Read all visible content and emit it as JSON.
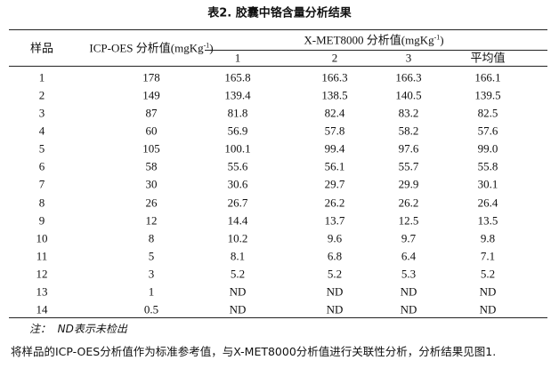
{
  "title": "表2. 胶囊中铬含量分析结果",
  "table": {
    "header": {
      "sample": "样品",
      "icp": {
        "text": "ICP-OES 分析值(mgKg",
        "sup": "-1",
        "close": ")"
      },
      "xmet": {
        "text": "X-MET8000 分析值(mgKg",
        "sup": "-1",
        "close": ")"
      },
      "sub": [
        "1",
        "2",
        "3",
        "平均值"
      ]
    },
    "rows": [
      [
        "1",
        "178",
        "165.8",
        "166.3",
        "166.3",
        "166.1"
      ],
      [
        "2",
        "149",
        "139.4",
        "138.5",
        "140.5",
        "139.5"
      ],
      [
        "3",
        "87",
        "81.8",
        "82.4",
        "83.2",
        "82.5"
      ],
      [
        "4",
        "60",
        "56.9",
        "57.8",
        "58.2",
        "57.6"
      ],
      [
        "5",
        "105",
        "100.1",
        "99.4",
        "97.6",
        "99.0"
      ],
      [
        "6",
        "58",
        "55.6",
        "56.1",
        "55.7",
        "55.8"
      ],
      [
        "7",
        "30",
        "30.6",
        "29.7",
        "29.9",
        "30.1"
      ],
      [
        "8",
        "26",
        "26.7",
        "26.2",
        "26.2",
        "26.4"
      ],
      [
        "9",
        "12",
        "14.4",
        "13.7",
        "12.5",
        "13.5"
      ],
      [
        "10",
        "8",
        "10.2",
        "9.6",
        "9.7",
        "9.8"
      ],
      [
        "11",
        "5",
        "8.1",
        "6.8",
        "6.4",
        "7.1"
      ],
      [
        "12",
        "3",
        "5.2",
        "5.2",
        "5.3",
        "5.2"
      ],
      [
        "13",
        "1",
        "ND",
        "ND",
        "ND",
        "ND"
      ],
      [
        "14",
        "0.5",
        "ND",
        "ND",
        "ND",
        "ND"
      ]
    ]
  },
  "note": "注：  ND表示未检出",
  "footer": "将样品的ICP-OES分析值作为标准参考值，与X-MET8000分析值进行关联性分析，分析结果见图1."
}
